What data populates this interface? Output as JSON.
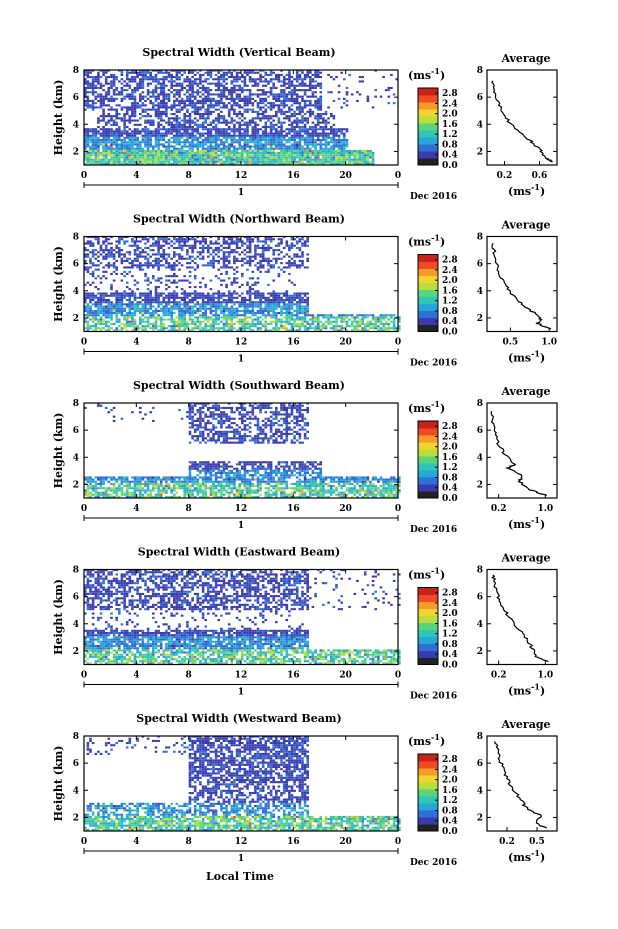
{
  "figure": {
    "xlabel": "Local Time",
    "date_label": "Dec 2016",
    "day_label": "1",
    "colorbar_unit": "(ms",
    "colorbar_unit_exp": "-1",
    "colorbar_unit_close": ")",
    "avg_title": "Average",
    "avg_unit": "(ms",
    "avg_unit_exp": "-1",
    "avg_unit_close": ")",
    "colors": {
      "main": "#3b4cc0",
      "scale": [
        "#222222",
        "#3b3bb0",
        "#2f6fd6",
        "#27a6d8",
        "#2fc6b5",
        "#59d47a",
        "#b8dd3d",
        "#f3d42e",
        "#f59a2b",
        "#ee4a23",
        "#c7231c"
      ]
    }
  },
  "chart_data": [
    {
      "type": "heatmap",
      "title": "Spectral Width (Vertical Beam)",
      "xlabel": "",
      "ylabel": "Height (km)",
      "xlim": [
        0,
        24
      ],
      "ylim": [
        1,
        8
      ],
      "xticks": [
        "0",
        "4",
        "8",
        "12",
        "16",
        "20",
        "0"
      ],
      "yticks": [
        "2",
        "4",
        "6",
        "8"
      ],
      "colorbar_ticks": [
        "0.0",
        "0.4",
        "0.8",
        "1.2",
        "1.6",
        "2.0",
        "2.4",
        "2.8"
      ],
      "colorbar_range": [
        0,
        3.0
      ],
      "avg": {
        "title": "Average",
        "xticks": [
          "0.2",
          "0.6"
        ],
        "xlim": [
          0.0,
          0.8
        ],
        "ylim": [
          1,
          8
        ],
        "yticks": [
          "2",
          "4",
          "6",
          "8"
        ],
        "profile": [
          [
            0.75,
            1.2
          ],
          [
            0.68,
            1.5
          ],
          [
            0.62,
            2.0
          ],
          [
            0.55,
            2.5
          ],
          [
            0.45,
            3.0
          ],
          [
            0.33,
            3.6
          ],
          [
            0.25,
            4.2
          ],
          [
            0.17,
            5.0
          ],
          [
            0.12,
            5.8
          ],
          [
            0.09,
            6.5
          ],
          [
            0.07,
            7.2
          ]
        ]
      }
    },
    {
      "type": "heatmap",
      "title": "Spectral Width (Northward Beam)",
      "xlabel": "",
      "ylabel": "Height (km)",
      "xlim": [
        0,
        24
      ],
      "ylim": [
        1,
        8
      ],
      "xticks": [
        "0",
        "4",
        "8",
        "12",
        "16",
        "20",
        "0"
      ],
      "yticks": [
        "2",
        "4",
        "6",
        "8"
      ],
      "colorbar_ticks": [
        "0.0",
        "0.4",
        "0.8",
        "1.2",
        "1.6",
        "2.0",
        "2.4",
        "2.8"
      ],
      "colorbar_range": [
        0,
        3.0
      ],
      "avg": {
        "title": "Average",
        "xticks": [
          "0.5",
          "1.0"
        ],
        "xlim": [
          0.2,
          1.1
        ],
        "ylim": [
          1,
          8
        ],
        "yticks": [
          "2",
          "4",
          "6",
          "8"
        ],
        "profile": [
          [
            1.0,
            1.2
          ],
          [
            0.85,
            1.6
          ],
          [
            0.9,
            2.0
          ],
          [
            0.75,
            2.6
          ],
          [
            0.62,
            3.2
          ],
          [
            0.5,
            3.9
          ],
          [
            0.42,
            4.6
          ],
          [
            0.36,
            5.3
          ],
          [
            0.32,
            6.0
          ],
          [
            0.29,
            6.8
          ],
          [
            0.28,
            7.5
          ]
        ]
      }
    },
    {
      "type": "heatmap",
      "title": "Spectral Width (Southward Beam)",
      "xlabel": "",
      "ylabel": "Height (km)",
      "xlim": [
        0,
        24
      ],
      "ylim": [
        1,
        8
      ],
      "xticks": [
        "0",
        "4",
        "8",
        "12",
        "16",
        "20",
        "0"
      ],
      "yticks": [
        "2",
        "4",
        "6",
        "8"
      ],
      "colorbar_ticks": [
        "0.0",
        "0.4",
        "0.8",
        "1.2",
        "1.6",
        "2.0",
        "2.4",
        "2.8"
      ],
      "colorbar_range": [
        0,
        3.0
      ],
      "avg": {
        "title": "Average",
        "xticks": [
          "0.2",
          "1.0"
        ],
        "xlim": [
          0.0,
          1.2
        ],
        "ylim": [
          1,
          8
        ],
        "yticks": [
          "2",
          "4",
          "6",
          "8"
        ],
        "profile": [
          [
            1.0,
            1.2
          ],
          [
            0.75,
            1.6
          ],
          [
            0.55,
            2.2
          ],
          [
            0.62,
            2.6
          ],
          [
            0.35,
            3.2
          ],
          [
            0.48,
            3.5
          ],
          [
            0.3,
            4.2
          ],
          [
            0.2,
            5.0
          ],
          [
            0.14,
            5.8
          ],
          [
            0.1,
            6.6
          ],
          [
            0.08,
            7.4
          ]
        ]
      }
    },
    {
      "type": "heatmap",
      "title": "Spectral Width (Eastward Beam)",
      "xlabel": "",
      "ylabel": "Height (km)",
      "xlim": [
        0,
        24
      ],
      "ylim": [
        1,
        8
      ],
      "xticks": [
        "0",
        "4",
        "8",
        "12",
        "16",
        "20",
        "0"
      ],
      "yticks": [
        "2",
        "4",
        "6",
        "8"
      ],
      "colorbar_ticks": [
        "0.0",
        "0.4",
        "0.8",
        "1.2",
        "1.6",
        "2.0",
        "2.4",
        "2.8"
      ],
      "colorbar_range": [
        0,
        3.0
      ],
      "avg": {
        "title": "Average",
        "xticks": [
          "0.2",
          "1.0"
        ],
        "xlim": [
          0.0,
          1.2
        ],
        "ylim": [
          1,
          8
        ],
        "yticks": [
          "2",
          "4",
          "6",
          "8"
        ],
        "profile": [
          [
            1.05,
            1.2
          ],
          [
            0.85,
            1.6
          ],
          [
            0.8,
            2.1
          ],
          [
            0.7,
            2.7
          ],
          [
            0.6,
            3.3
          ],
          [
            0.45,
            4.0
          ],
          [
            0.35,
            4.7
          ],
          [
            0.25,
            5.4
          ],
          [
            0.18,
            6.2
          ],
          [
            0.13,
            7.0
          ],
          [
            0.1,
            7.6
          ]
        ]
      }
    },
    {
      "type": "heatmap",
      "title": "Spectral Width (Westward Beam)",
      "xlabel": "",
      "ylabel": "Height (km)",
      "xlim": [
        0,
        24
      ],
      "ylim": [
        1,
        8
      ],
      "xticks": [
        "0",
        "4",
        "8",
        "12",
        "16",
        "20",
        "0"
      ],
      "yticks": [
        "2",
        "4",
        "6",
        "8"
      ],
      "colorbar_ticks": [
        "0.0",
        "0.4",
        "0.8",
        "1.2",
        "1.6",
        "2.0",
        "2.4",
        "2.8"
      ],
      "colorbar_range": [
        0,
        3.0
      ],
      "avg": {
        "title": "Average",
        "xticks": [
          "0.2",
          "0.5"
        ],
        "xlim": [
          0.0,
          0.7
        ],
        "ylim": [
          1,
          8
        ],
        "yticks": [
          "2",
          "4",
          "6",
          "8"
        ],
        "profile": [
          [
            0.6,
            1.2
          ],
          [
            0.48,
            1.6
          ],
          [
            0.55,
            2.1
          ],
          [
            0.4,
            2.6
          ],
          [
            0.35,
            3.2
          ],
          [
            0.28,
            3.9
          ],
          [
            0.22,
            4.6
          ],
          [
            0.17,
            5.4
          ],
          [
            0.13,
            6.2
          ],
          [
            0.1,
            7.0
          ],
          [
            0.08,
            7.6
          ]
        ]
      }
    }
  ]
}
